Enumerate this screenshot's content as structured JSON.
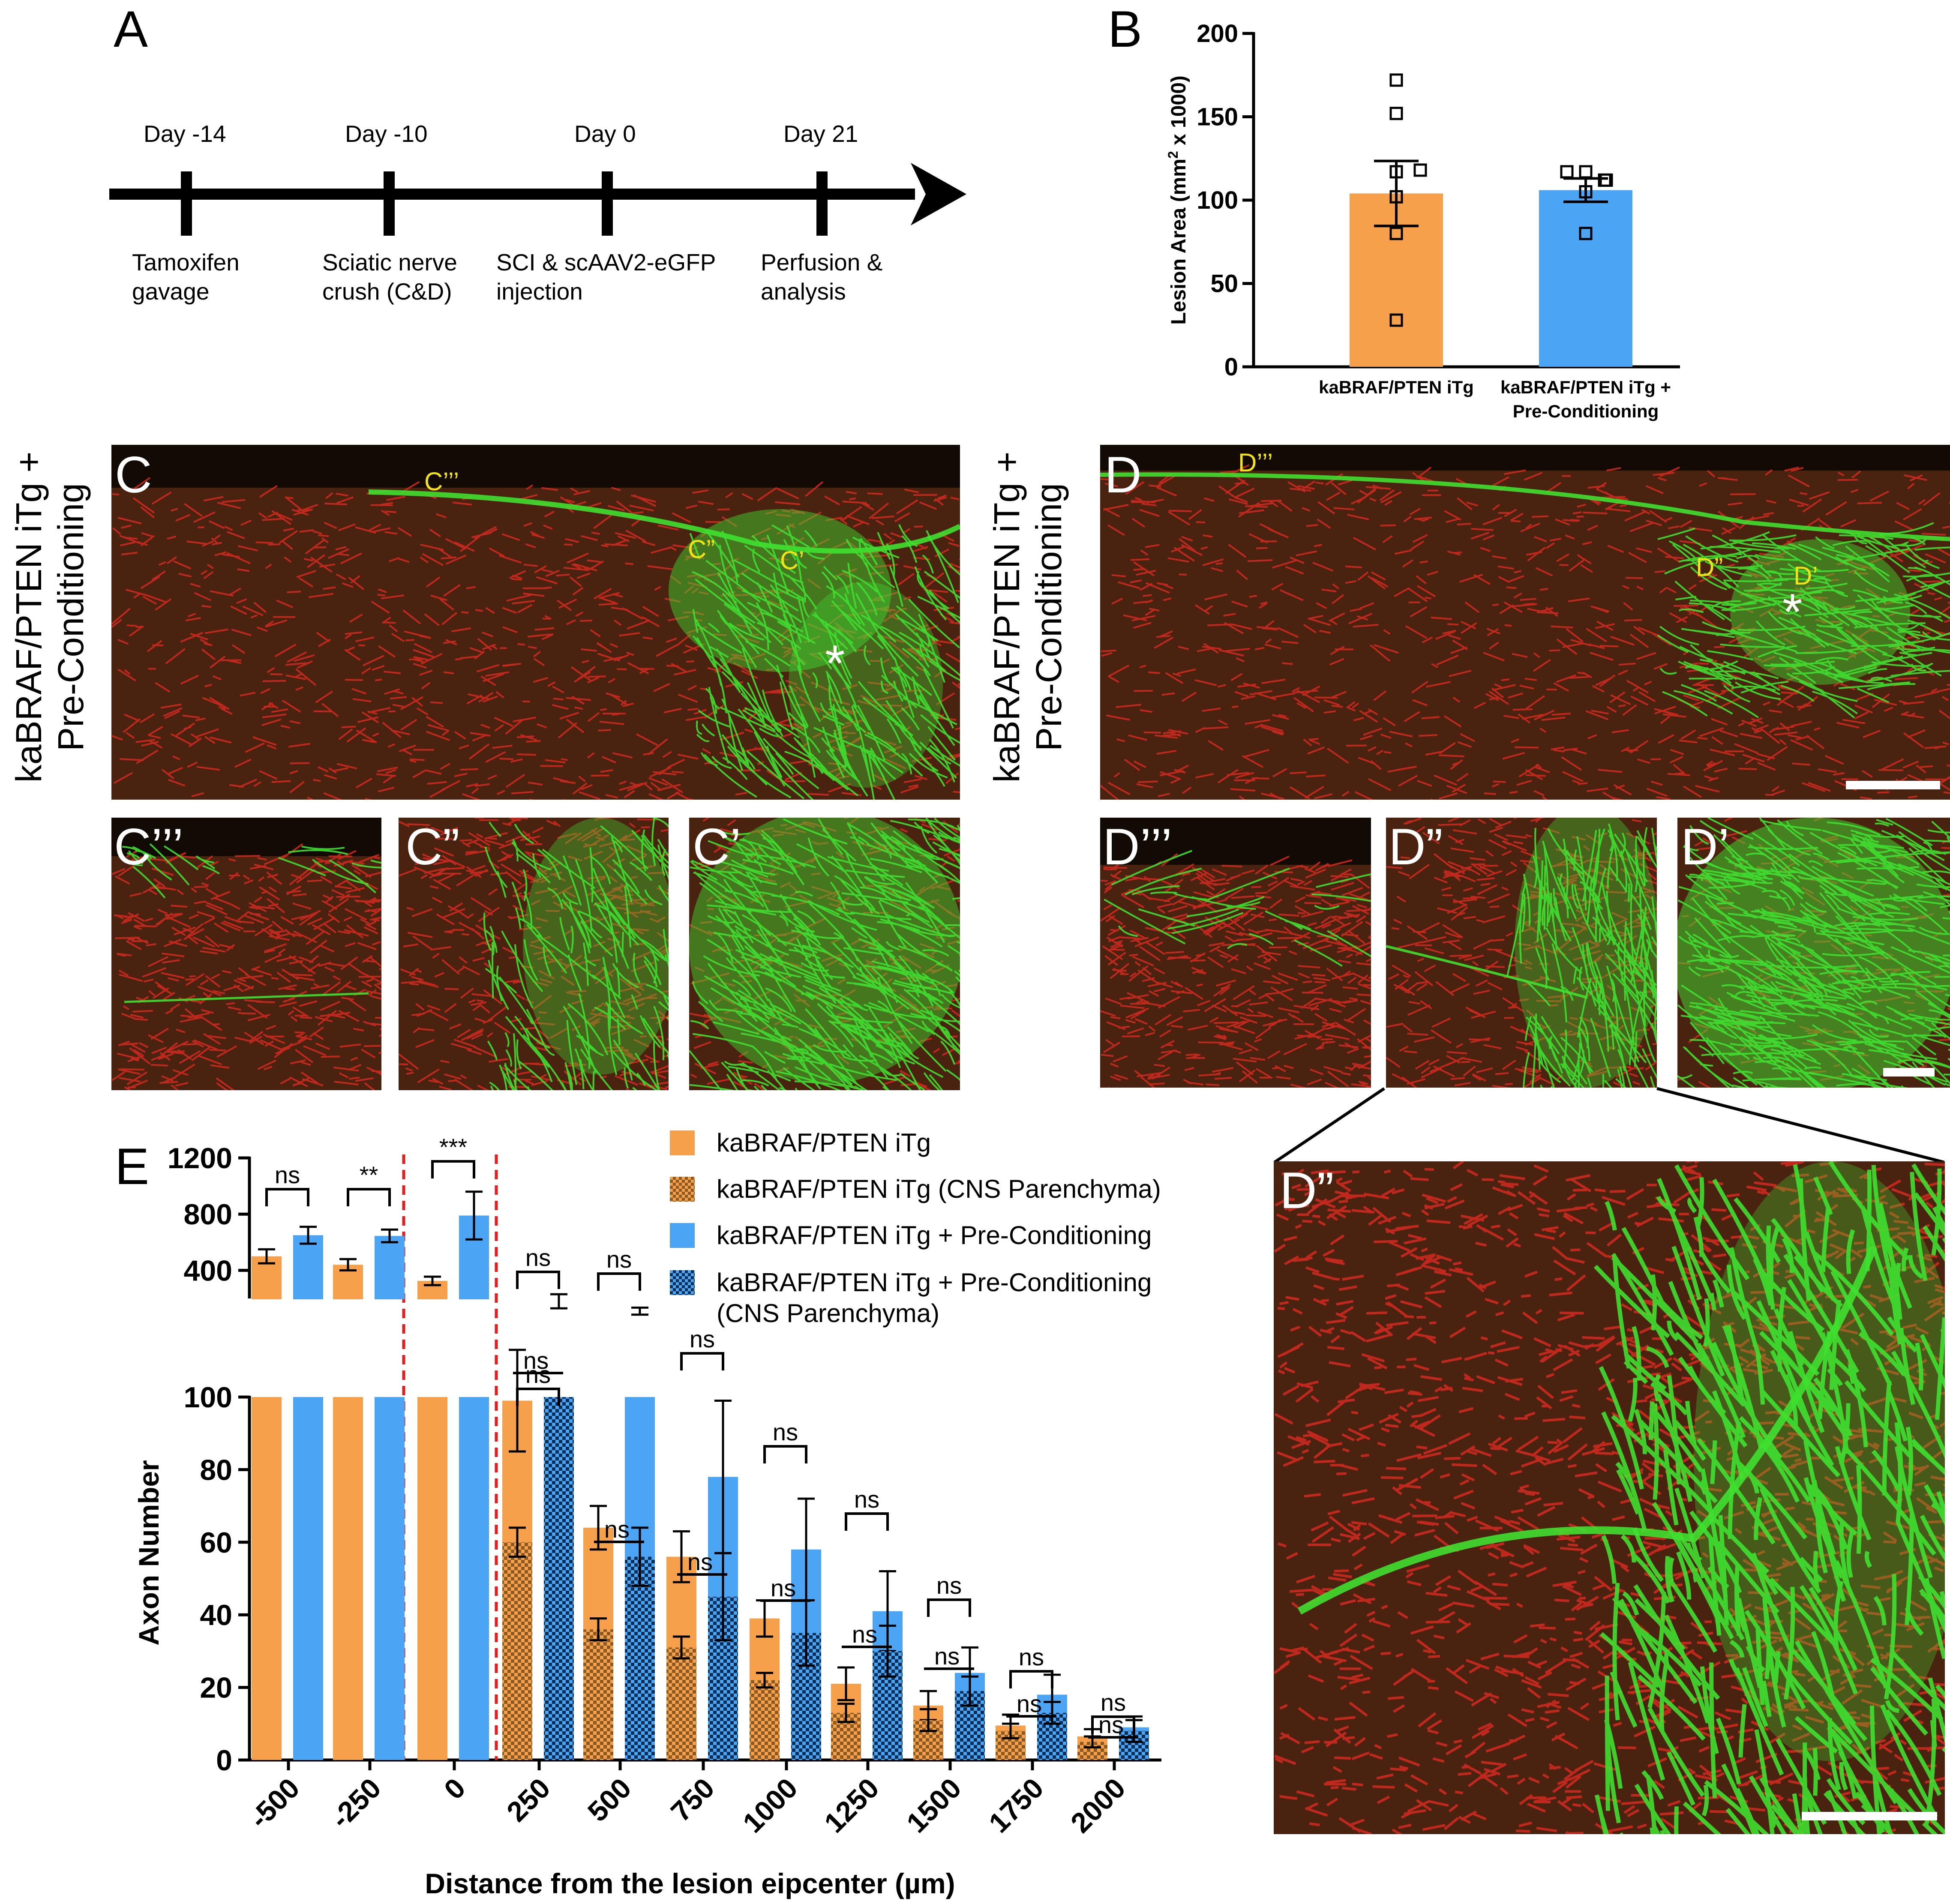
{
  "panels": {
    "A": "A",
    "B": "B",
    "C": "C",
    "D": "D",
    "E": "E"
  },
  "timeline": {
    "events": [
      {
        "day": "Day -14",
        "line1": "Tamoxifen",
        "line2": "gavage"
      },
      {
        "day": "Day -10",
        "line1": "Sciatic nerve",
        "line2": "crush (C&D)"
      },
      {
        "day": "Day 0",
        "line1": "SCI & scAAV2-eGFP",
        "line2": "injection"
      },
      {
        "day": "Day 21",
        "line1": "Perfusion &",
        "line2": "analysis"
      }
    ]
  },
  "micrographs": {
    "C_side_label": "kaBRAF/PTEN iTg +\nPre-Conditioning",
    "D_side_label": "kaBRAF/PTEN iTg +\nPre-Conditioning",
    "C_main": {
      "label": "C",
      "marks": [
        "C’’’",
        "C”",
        "C’"
      ],
      "asterisk": "*"
    },
    "D_main": {
      "label": "D",
      "marks": [
        "D’’’",
        "D”",
        "D’"
      ],
      "asterisk": "*"
    },
    "C_insets": [
      "C’’’",
      "C”",
      "C’"
    ],
    "D_insets": [
      "D’’’",
      "D”",
      "D’"
    ],
    "zoom_label": "D”",
    "colors": {
      "red": "#d42a1f",
      "green": "#3fe030",
      "dark": "#1a1208"
    }
  },
  "chart_data": [
    {
      "id": "B",
      "type": "bar",
      "ylabel": "Lesion Area (mm² x 1000)",
      "ylabel_main": "Lesion Area (mm",
      "ylabel_sup": "2",
      "ylabel_tail": " x 1000)",
      "ylim": [
        0,
        200
      ],
      "yticks": [
        "0",
        "50",
        "100",
        "150",
        "200"
      ],
      "categories": [
        "kaBRAF/PTEN iTg",
        "kaBRAF/PTEN iTg +\nPre-Conditioning"
      ],
      "cat_line1": [
        "kaBRAF/PTEN iTg",
        "kaBRAF/PTEN iTg +"
      ],
      "cat_line2": [
        "",
        "Pre-Conditioning"
      ],
      "values": [
        104,
        106
      ],
      "errors": [
        19.5,
        7
      ],
      "points": [
        [
          172,
          152,
          118,
          117,
          102,
          80,
          28
        ],
        [
          117,
          117,
          112,
          112,
          105,
          80
        ]
      ],
      "colors": [
        "#f7a04b",
        "#4ca4f5"
      ]
    },
    {
      "id": "E",
      "type": "bar",
      "xlabel": "Distance from the lesion eipcenter (µm)",
      "ylabel": "Axon Number",
      "categories": [
        "-500",
        "-250",
        "0",
        "250",
        "500",
        "750",
        "1000",
        "1250",
        "1500",
        "1750",
        "2000"
      ],
      "ylim_lower": [
        0,
        100
      ],
      "yticks_lower": [
        "0",
        "20",
        "40",
        "60",
        "80",
        "100"
      ],
      "ylim_upper": [
        100,
        1200
      ],
      "yticks_upper": [
        "400",
        "800",
        "1200"
      ],
      "series": [
        {
          "name": "kaBRAF/PTEN iTg",
          "values": [
            500,
            440,
            325,
            99,
            64,
            56,
            39,
            21,
            15,
            9.5,
            6.5
          ],
          "errors": [
            50,
            40,
            30,
            14,
            6,
            7,
            5,
            4.5,
            4,
            3,
            2
          ]
        },
        {
          "name": "kaBRAF/PTEN iTg (CNS Parenchyma)",
          "values": [
            null,
            null,
            null,
            60,
            36,
            31,
            22,
            13,
            11,
            8,
            5
          ],
          "errors": [
            null,
            null,
            null,
            4,
            3,
            3,
            2,
            2.5,
            3,
            2,
            1.5
          ]
        },
        {
          "name": "kaBRAF/PTEN iTg + Pre-Conditioning",
          "values": [
            650,
            645,
            790,
            180,
            110,
            78,
            58,
            41,
            24,
            18,
            9
          ],
          "errors": [
            60,
            45,
            170,
            50,
            25,
            21,
            14,
            11,
            7,
            5.5,
            3
          ]
        },
        {
          "name": "kaBRAF/PTEN iTg + Pre-Conditioning\n(CNS Parenchyma)",
          "values": [
            null,
            null,
            null,
            100,
            56,
            45,
            35,
            30,
            19,
            13,
            8
          ],
          "errors": [
            null,
            null,
            null,
            null,
            8,
            12,
            9,
            7,
            4,
            3,
            3
          ]
        }
      ],
      "legend": [
        "kaBRAF/PTEN iTg",
        "kaBRAF/PTEN iTg (CNS Parenchyma)",
        "kaBRAF/PTEN iTg + Pre-Conditioning",
        "kaBRAF/PTEN iTg + Pre-Conditioning",
        "(CNS Parenchyma)"
      ],
      "significance_upper": [
        "ns",
        "**",
        "***",
        "ns",
        "ns"
      ],
      "significance_lower_total": [
        "ns",
        "ns",
        "ns",
        "ns",
        "ns",
        "ns",
        "ns",
        "ns",
        "ns"
      ],
      "significance_lower_parenchyma": [
        "ns",
        "ns",
        "ns",
        "ns",
        "ns",
        "ns",
        "ns",
        "ns"
      ],
      "colors": {
        "orange": "#f7a04b",
        "blue": "#4ca4f5",
        "orange_dark": "#8a5a22",
        "blue_dark": "#0d2f55",
        "divider": "#e02020"
      }
    }
  ]
}
